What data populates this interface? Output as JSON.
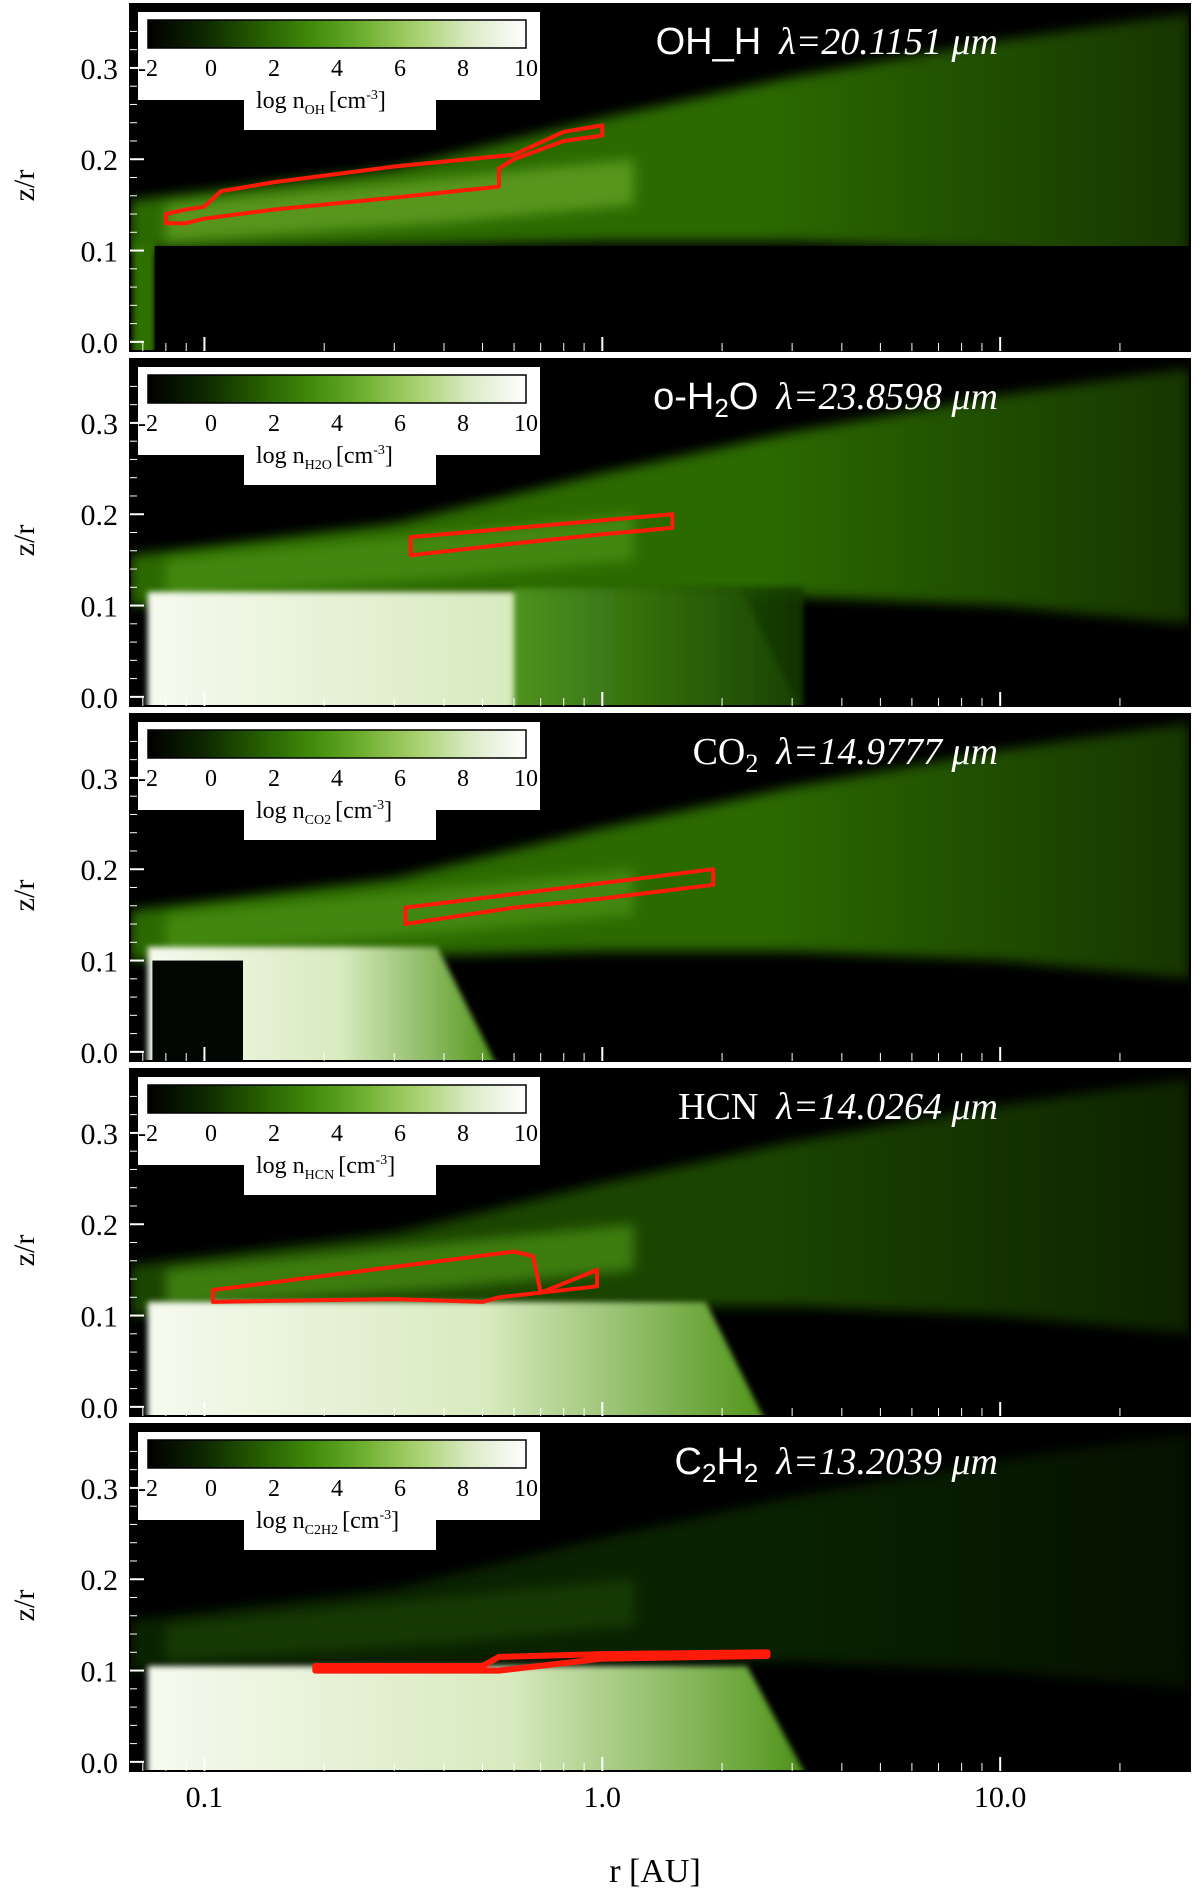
{
  "figure": {
    "x_axis_label": "r [AU]",
    "y_axis_label": "z/r"
  },
  "colorscale": {
    "stops": [
      "#000000",
      "#0d2600",
      "#245a00",
      "#3f8a0a",
      "#6fb030",
      "#a9d270",
      "#dcebc8",
      "#ffffff"
    ],
    "contour_color": "#ff1a0a",
    "ticks": [
      "-2",
      "0",
      "2",
      "4",
      "6",
      "8",
      "10"
    ],
    "range": [
      -2,
      10
    ]
  },
  "chart_data": [
    {
      "type": "heatmap",
      "species": "OH",
      "title": "OH_H λ=20.1151 μm",
      "title_main": "OH_H",
      "lambda_label": "λ=20.1151 μm",
      "colorbar_label": "log n",
      "colorbar_sub": "OH",
      "colorbar_unit": "[cm",
      "colorbar_exp": "-3",
      "colorbar_close": "]",
      "xlim": [
        0.065,
        30
      ],
      "xscale": "log",
      "ylim": [
        -0.01,
        0.37
      ],
      "yticks": [
        "0.0",
        "0.1",
        "0.2",
        "0.3"
      ],
      "x_ticks": [],
      "emitting_region": [
        [
          0.08,
          0.13
        ],
        [
          0.08,
          0.14
        ],
        [
          0.09,
          0.145
        ],
        [
          0.1,
          0.148
        ],
        [
          0.11,
          0.165
        ],
        [
          0.15,
          0.175
        ],
        [
          0.3,
          0.192
        ],
        [
          0.6,
          0.205
        ],
        [
          0.8,
          0.23
        ],
        [
          1.0,
          0.237
        ],
        [
          1.0,
          0.226
        ],
        [
          0.8,
          0.22
        ],
        [
          0.6,
          0.2
        ],
        [
          0.55,
          0.19
        ],
        [
          0.55,
          0.17
        ],
        [
          0.3,
          0.158
        ],
        [
          0.15,
          0.145
        ],
        [
          0.1,
          0.135
        ],
        [
          0.09,
          0.13
        ]
      ]
    },
    {
      "type": "heatmap",
      "species": "H2O",
      "title": "o-H2O λ=23.8598 μm",
      "title_main": "o-H",
      "title_sub": "2",
      "title_tail": "O",
      "lambda_label": "λ=23.8598 μm",
      "colorbar_label": "log n",
      "colorbar_sub": "H2O",
      "colorbar_unit": "[cm",
      "colorbar_exp": "-3",
      "colorbar_close": "]",
      "xlim": [
        0.065,
        30
      ],
      "xscale": "log",
      "ylim": [
        -0.01,
        0.37
      ],
      "yticks": [
        "0.0",
        "0.1",
        "0.2",
        "0.3"
      ],
      "x_ticks": [],
      "emitting_region": [
        [
          0.33,
          0.155
        ],
        [
          0.33,
          0.175
        ],
        [
          1.5,
          0.2
        ],
        [
          1.5,
          0.185
        ],
        [
          1.0,
          0.178
        ],
        [
          0.6,
          0.168
        ]
      ]
    },
    {
      "type": "heatmap",
      "species": "CO2",
      "title": "CO2 λ=14.9777 μm",
      "title_main": "CO",
      "title_sub": "2",
      "title_tail": "",
      "lambda_label": "λ=14.9777 μm",
      "colorbar_label": "log n",
      "colorbar_sub": "CO2",
      "colorbar_unit": "[cm",
      "colorbar_exp": "-3",
      "colorbar_close": "]",
      "xlim": [
        0.065,
        30
      ],
      "xscale": "log",
      "ylim": [
        -0.01,
        0.37
      ],
      "yticks": [
        "0.0",
        "0.1",
        "0.2",
        "0.3"
      ],
      "x_ticks": [],
      "emitting_region": [
        [
          0.32,
          0.14
        ],
        [
          0.32,
          0.158
        ],
        [
          1.9,
          0.2
        ],
        [
          1.9,
          0.183
        ],
        [
          1.0,
          0.168
        ],
        [
          0.6,
          0.158
        ]
      ]
    },
    {
      "type": "heatmap",
      "species": "HCN",
      "title": "HCN λ=14.0264 μm",
      "title_main": "HCN",
      "lambda_label": "λ=14.0264 μm",
      "colorbar_label": "log n",
      "colorbar_sub": "HCN",
      "colorbar_unit": "[cm",
      "colorbar_exp": "-3",
      "colorbar_close": "]",
      "xlim": [
        0.065,
        30
      ],
      "xscale": "log",
      "ylim": [
        -0.01,
        0.37
      ],
      "yticks": [
        "0.0",
        "0.1",
        "0.2",
        "0.3"
      ],
      "x_ticks": [],
      "emitting_region": [
        [
          0.105,
          0.115
        ],
        [
          0.105,
          0.128
        ],
        [
          0.6,
          0.17
        ],
        [
          0.67,
          0.165
        ],
        [
          0.7,
          0.125
        ],
        [
          0.97,
          0.15
        ],
        [
          0.97,
          0.132
        ],
        [
          0.7,
          0.125
        ],
        [
          0.55,
          0.12
        ],
        [
          0.5,
          0.115
        ],
        [
          0.3,
          0.118
        ],
        [
          0.15,
          0.116
        ]
      ]
    },
    {
      "type": "heatmap",
      "species": "C2H2",
      "title": "C2H2 λ=13.2039 μm",
      "title_main": "C",
      "title_sub": "2",
      "title_tail": "H",
      "title_sub2": "2",
      "lambda_label": "λ=13.2039 μm",
      "colorbar_label": "log n",
      "colorbar_sub": "C2H2",
      "colorbar_unit": "[cm",
      "colorbar_exp": "-3",
      "colorbar_close": "]",
      "xlim": [
        0.065,
        30
      ],
      "xscale": "log",
      "ylim": [
        -0.01,
        0.37
      ],
      "yticks": [
        "0.0",
        "0.1",
        "0.2",
        "0.3"
      ],
      "x_ticks": [
        "0.1",
        "1.0",
        "10.0"
      ],
      "emitting_region": [
        [
          0.19,
          0.1
        ],
        [
          0.19,
          0.105
        ],
        [
          0.5,
          0.105
        ],
        [
          0.55,
          0.115
        ],
        [
          1.0,
          0.118
        ],
        [
          2.6,
          0.12
        ],
        [
          2.6,
          0.116
        ],
        [
          1.0,
          0.113
        ],
        [
          0.55,
          0.1
        ],
        [
          0.5,
          0.1
        ]
      ]
    }
  ]
}
